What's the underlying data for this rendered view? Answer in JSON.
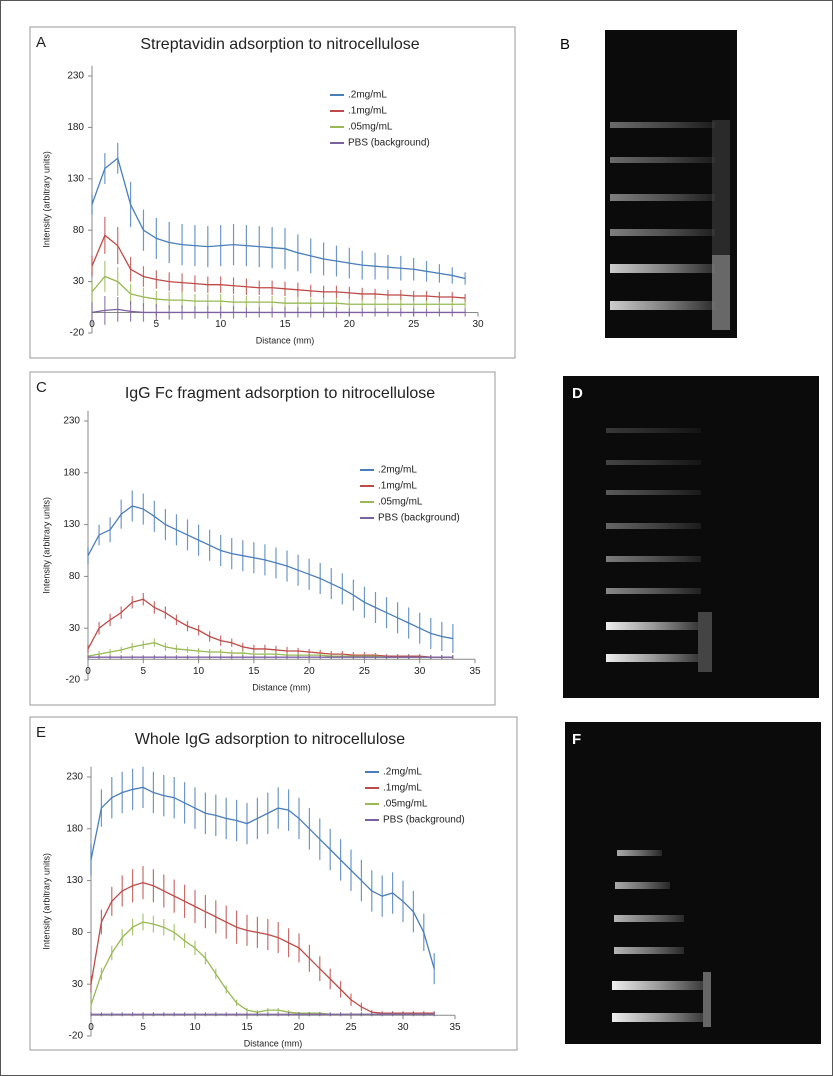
{
  "chart_data": [
    {
      "type": "line",
      "panel": "A",
      "title": "Streptavidin adsorption to nitrocellulose",
      "x_label": "Distance (mm)",
      "y_label": "Intensity (arbitrary units)",
      "x": [
        0,
        1,
        2,
        3,
        4,
        5,
        6,
        7,
        8,
        9,
        10,
        11,
        12,
        13,
        14,
        15,
        16,
        17,
        18,
        19,
        20,
        21,
        22,
        23,
        24,
        25,
        26,
        27,
        28,
        29
      ],
      "xlim": [
        0,
        30
      ],
      "xticks": [
        0,
        5,
        10,
        15,
        20,
        25,
        30
      ],
      "ylim": [
        -20,
        240
      ],
      "yticks": [
        -20,
        30,
        80,
        130,
        180,
        230
      ],
      "legend": "upper right",
      "series": [
        {
          "name": ".2mg/mL",
          "color": "#4a7ebb",
          "values": [
            105,
            140,
            150,
            105,
            80,
            72,
            68,
            66,
            65,
            64,
            65,
            66,
            65,
            64,
            63,
            62,
            58,
            55,
            52,
            50,
            48,
            46,
            45,
            44,
            43,
            42,
            40,
            38,
            36,
            33
          ],
          "errors": [
            10,
            15,
            15,
            22,
            20,
            20,
            20,
            20,
            20,
            20,
            20,
            20,
            20,
            20,
            20,
            20,
            18,
            17,
            16,
            15,
            15,
            14,
            13,
            12,
            12,
            11,
            10,
            9,
            8,
            6
          ]
        },
        {
          "name": ".1mg/mL",
          "color": "#be4b48",
          "values": [
            45,
            75,
            65,
            42,
            35,
            32,
            30,
            29,
            28,
            27,
            27,
            26,
            25,
            24,
            24,
            23,
            22,
            21,
            20,
            20,
            19,
            18,
            18,
            17,
            17,
            16,
            16,
            15,
            15,
            14
          ],
          "errors": [
            10,
            18,
            18,
            12,
            10,
            9,
            9,
            9,
            8,
            8,
            8,
            8,
            8,
            7,
            7,
            7,
            7,
            6,
            6,
            6,
            6,
            6,
            5,
            5,
            5,
            5,
            5,
            5,
            5,
            4
          ]
        },
        {
          "name": ".05mg/mL",
          "color": "#98b954",
          "values": [
            20,
            35,
            30,
            18,
            15,
            13,
            12,
            12,
            11,
            11,
            11,
            10,
            10,
            10,
            10,
            9,
            9,
            9,
            9,
            9,
            8,
            8,
            8,
            8,
            8,
            8,
            8,
            8,
            8,
            8
          ],
          "errors": [
            10,
            15,
            14,
            10,
            9,
            8,
            8,
            8,
            7,
            7,
            7,
            7,
            6,
            6,
            6,
            6,
            6,
            5,
            5,
            5,
            5,
            5,
            5,
            5,
            5,
            5,
            4,
            4,
            4,
            4
          ]
        },
        {
          "name": "PBS (background)",
          "color": "#7d60a0",
          "values": [
            0,
            2,
            3,
            1,
            0,
            0,
            0,
            0,
            0,
            0,
            0,
            0,
            0,
            0,
            0,
            0,
            0,
            0,
            0,
            0,
            0,
            0,
            0,
            0,
            0,
            0,
            0,
            0,
            0,
            0
          ],
          "errors": [
            10,
            14,
            12,
            10,
            9,
            8,
            7,
            7,
            6,
            6,
            6,
            6,
            5,
            5,
            5,
            5,
            5,
            5,
            5,
            5,
            4,
            4,
            4,
            4,
            4,
            4,
            4,
            4,
            4,
            4
          ]
        }
      ]
    },
    {
      "type": "line",
      "panel": "C",
      "title": "IgG Fc fragment adsorption to nitrocellulose",
      "x_label": "Distance (mm)",
      "y_label": "Intensity (arbitrary units)",
      "x": [
        0,
        1,
        2,
        3,
        4,
        5,
        6,
        7,
        8,
        9,
        10,
        11,
        12,
        13,
        14,
        15,
        16,
        17,
        18,
        19,
        20,
        21,
        22,
        23,
        24,
        25,
        26,
        27,
        28,
        29,
        30,
        31,
        32,
        33
      ],
      "xlim": [
        0,
        35
      ],
      "xticks": [
        0,
        5,
        10,
        15,
        20,
        25,
        30,
        35
      ],
      "ylim": [
        -20,
        240
      ],
      "yticks": [
        -20,
        30,
        80,
        130,
        180,
        230
      ],
      "legend": "upper right",
      "series": [
        {
          "name": ".2mg/mL",
          "color": "#4a7ebb",
          "values": [
            100,
            120,
            125,
            140,
            148,
            145,
            138,
            130,
            125,
            120,
            115,
            110,
            105,
            102,
            100,
            98,
            96,
            93,
            90,
            86,
            82,
            78,
            73,
            68,
            62,
            55,
            50,
            45,
            40,
            35,
            30,
            25,
            22,
            20
          ],
          "errors": [
            8,
            10,
            12,
            14,
            15,
            15,
            15,
            15,
            15,
            15,
            15,
            15,
            15,
            15,
            15,
            15,
            15,
            15,
            15,
            15,
            15,
            15,
            15,
            15,
            15,
            15,
            15,
            15,
            15,
            15,
            15,
            15,
            14,
            14
          ]
        },
        {
          "name": ".1mg/mL",
          "color": "#be4b48",
          "values": [
            10,
            30,
            38,
            45,
            55,
            58,
            50,
            45,
            38,
            32,
            28,
            22,
            18,
            16,
            12,
            10,
            10,
            9,
            8,
            8,
            7,
            6,
            5,
            5,
            4,
            4,
            4,
            3,
            3,
            3,
            3,
            2,
            2,
            2
          ],
          "errors": [
            4,
            6,
            6,
            6,
            6,
            6,
            6,
            6,
            5,
            5,
            5,
            5,
            5,
            4,
            4,
            4,
            4,
            4,
            4,
            3,
            3,
            3,
            3,
            3,
            3,
            3,
            2,
            2,
            2,
            2,
            2,
            2,
            2,
            2
          ]
        },
        {
          "name": ".05mg/mL",
          "color": "#98b954",
          "values": [
            3,
            5,
            7,
            9,
            12,
            14,
            16,
            12,
            10,
            9,
            8,
            7,
            7,
            6,
            6,
            5,
            5,
            5,
            4,
            4,
            4,
            4,
            3,
            3,
            3,
            3,
            3,
            2,
            2,
            2,
            2,
            2,
            2,
            2
          ],
          "errors": [
            2,
            3,
            3,
            3,
            4,
            4,
            4,
            4,
            4,
            3,
            3,
            3,
            3,
            3,
            3,
            3,
            3,
            3,
            2,
            2,
            2,
            2,
            2,
            2,
            2,
            2,
            2,
            2,
            2,
            2,
            2,
            2,
            2,
            2
          ]
        },
        {
          "name": "PBS (background)",
          "color": "#7d60a0",
          "values": [
            2,
            2,
            2,
            2,
            2,
            2,
            2,
            2,
            2,
            2,
            2,
            2,
            2,
            2,
            2,
            2,
            2,
            2,
            2,
            2,
            2,
            2,
            2,
            2,
            2,
            2,
            2,
            2,
            2,
            2,
            2,
            2,
            2,
            2
          ],
          "errors": [
            2,
            2,
            2,
            2,
            2,
            2,
            2,
            2,
            2,
            2,
            2,
            2,
            2,
            2,
            2,
            2,
            2,
            2,
            2,
            2,
            2,
            2,
            2,
            2,
            2,
            2,
            2,
            2,
            2,
            2,
            2,
            2,
            2,
            2
          ]
        }
      ]
    },
    {
      "type": "line",
      "panel": "E",
      "title": "Whole IgG adsorption to nitrocellulose",
      "x_label": "Distance (mm)",
      "y_label": "Intensity (arbitrary units)",
      "x": [
        0,
        1,
        2,
        3,
        4,
        5,
        6,
        7,
        8,
        9,
        10,
        11,
        12,
        13,
        14,
        15,
        16,
        17,
        18,
        19,
        20,
        21,
        22,
        23,
        24,
        25,
        26,
        27,
        28,
        29,
        30,
        31,
        32,
        33
      ],
      "xlim": [
        0,
        35
      ],
      "xticks": [
        0,
        5,
        10,
        15,
        20,
        25,
        30,
        35
      ],
      "ylim": [
        -20,
        240
      ],
      "yticks": [
        -20,
        30,
        80,
        130,
        180,
        230
      ],
      "legend": "upper right",
      "series": [
        {
          "name": ".2mg/mL",
          "color": "#4a7ebb",
          "values": [
            150,
            200,
            210,
            215,
            218,
            220,
            215,
            212,
            210,
            205,
            200,
            195,
            193,
            190,
            188,
            185,
            190,
            195,
            200,
            198,
            190,
            180,
            170,
            160,
            150,
            140,
            130,
            120,
            115,
            118,
            110,
            100,
            80,
            45
          ],
          "errors": [
            15,
            18,
            20,
            20,
            20,
            20,
            20,
            20,
            20,
            20,
            20,
            20,
            20,
            20,
            20,
            20,
            20,
            20,
            20,
            20,
            20,
            20,
            20,
            20,
            20,
            20,
            20,
            20,
            20,
            20,
            20,
            20,
            18,
            15
          ]
        },
        {
          "name": ".1mg/mL",
          "color": "#be4b48",
          "values": [
            30,
            90,
            110,
            120,
            125,
            128,
            125,
            120,
            115,
            110,
            105,
            100,
            95,
            90,
            85,
            82,
            80,
            78,
            75,
            70,
            65,
            55,
            45,
            35,
            25,
            15,
            8,
            3,
            2,
            2,
            2,
            2,
            2,
            2
          ],
          "errors": [
            8,
            12,
            14,
            15,
            16,
            16,
            16,
            16,
            16,
            16,
            16,
            16,
            16,
            16,
            16,
            15,
            15,
            15,
            15,
            14,
            14,
            13,
            12,
            10,
            8,
            6,
            4,
            2,
            2,
            2,
            2,
            2,
            2,
            2
          ]
        },
        {
          "name": ".05mg/mL",
          "color": "#98b954",
          "values": [
            10,
            40,
            60,
            75,
            85,
            90,
            88,
            85,
            80,
            72,
            65,
            55,
            40,
            25,
            12,
            5,
            3,
            5,
            5,
            3,
            2,
            2,
            2,
            1,
            1,
            1,
            1,
            1,
            1,
            1,
            1,
            1,
            1,
            1
          ],
          "errors": [
            4,
            6,
            7,
            8,
            8,
            8,
            8,
            8,
            8,
            7,
            7,
            6,
            5,
            4,
            3,
            2,
            2,
            2,
            2,
            2,
            1,
            1,
            1,
            1,
            1,
            1,
            1,
            1,
            1,
            1,
            1,
            1,
            1,
            1
          ]
        },
        {
          "name": "PBS (background)",
          "color": "#7d60a0",
          "values": [
            1,
            1,
            1,
            1,
            1,
            1,
            1,
            1,
            1,
            1,
            1,
            1,
            1,
            1,
            1,
            1,
            1,
            1,
            1,
            1,
            1,
            1,
            1,
            1,
            1,
            1,
            1,
            1,
            1,
            1,
            1,
            1,
            1,
            1
          ],
          "errors": [
            2,
            2,
            2,
            2,
            2,
            2,
            2,
            2,
            2,
            2,
            2,
            2,
            2,
            2,
            2,
            2,
            2,
            2,
            2,
            2,
            2,
            2,
            2,
            2,
            2,
            2,
            2,
            2,
            2,
            2,
            2,
            2,
            2,
            2
          ]
        }
      ]
    }
  ],
  "images": [
    {
      "label": "B"
    },
    {
      "label": "D"
    },
    {
      "label": "F"
    }
  ]
}
